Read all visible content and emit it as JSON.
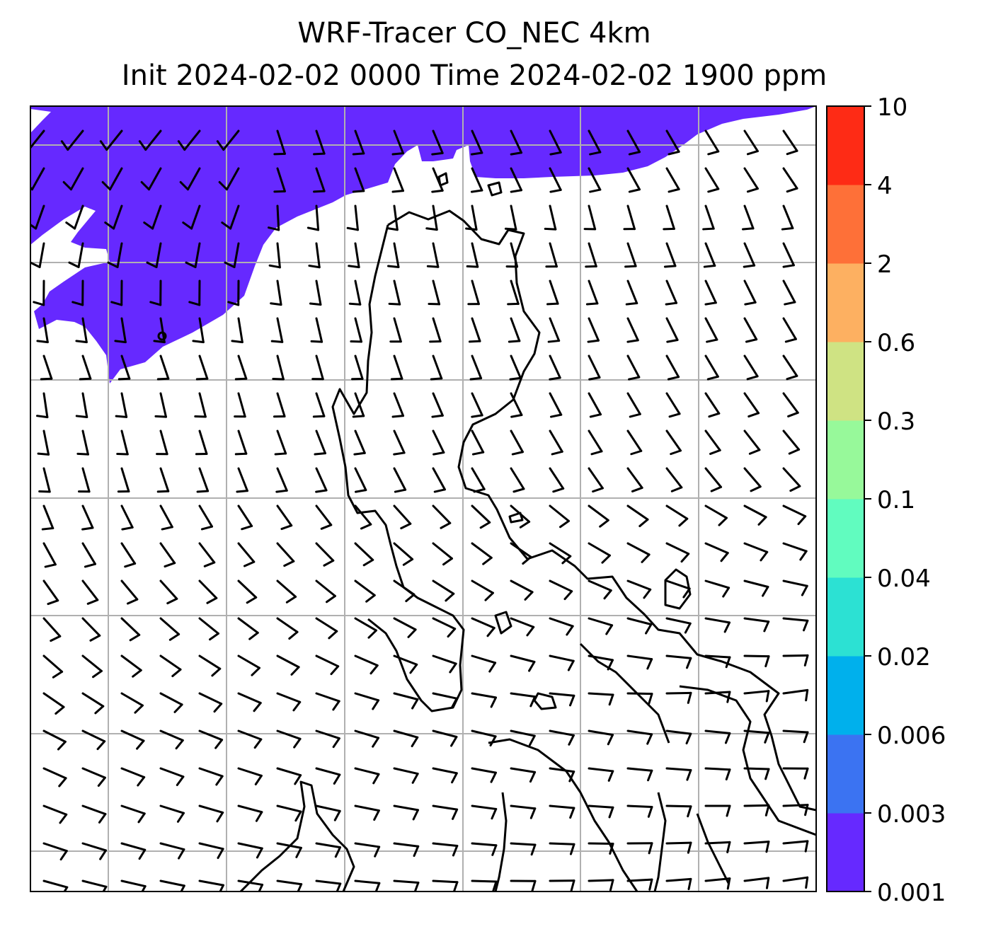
{
  "title_line1": "WRF-Tracer CO_NEC 4km",
  "title_line2": "Init 2024-02-02 0000 Time 2024-02-02 1900 ppm",
  "colorbar": {
    "levels": [
      "0.001",
      "0.003",
      "0.006",
      "0.02",
      "0.04",
      "0.1",
      "0.3",
      "0.6",
      "2",
      "4",
      "10"
    ],
    "colors": [
      "#6629ff",
      "#3b73f2",
      "#00b0ec",
      "#2ce1d3",
      "#61fcbf",
      "#97f99a",
      "#cfe383",
      "#fdb061",
      "#fe7038",
      "#fe2b15"
    ]
  },
  "map": {
    "field_fill_color": "#6629ff",
    "gridline_color": "#b0b0b0",
    "coastline_color": "#000000"
  }
}
